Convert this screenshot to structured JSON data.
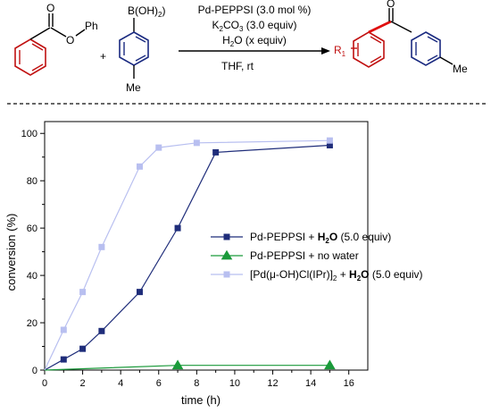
{
  "colors": {
    "red": "#c01010",
    "blue": "#1a2a80",
    "series_navy": "#1f2d7a",
    "series_green": "#1a9a3a",
    "series_light": "#b8bff0",
    "divider": "#333333"
  },
  "scheme": {
    "reactant1": {
      "carbonyl_o": "O",
      "ester_o": "O",
      "ph": "Ph"
    },
    "plus": "+",
    "reactant2": {
      "boronic": "B(OH)",
      "boronic_sub": "2",
      "methyl": "Me"
    },
    "conditions": {
      "line1": "Pd-PEPPSI (3.0 mol %)",
      "line2_pre": "K",
      "line2_sub1": "2",
      "line2_mid": "CO",
      "line2_sub2": "3",
      "line2_post": " (3.0 equiv)",
      "line3_pre": "H",
      "line3_sub": "2",
      "line3_post": "O (x equiv)",
      "line4": "THF, rt"
    },
    "product": {
      "carbonyl_o": "O",
      "r1": "R",
      "r1_sub": "1",
      "methyl": "Me"
    }
  },
  "chart_data": {
    "type": "line",
    "xlabel": "time (h)",
    "ylabel": "conversion (%)",
    "xlim": [
      0,
      17
    ],
    "ylim": [
      0,
      105
    ],
    "xticks": [
      0,
      2,
      4,
      6,
      8,
      10,
      12,
      14,
      16
    ],
    "yticks": [
      0,
      20,
      40,
      60,
      80,
      100
    ],
    "legend_placement": "center-right",
    "series": [
      {
        "id": "s1",
        "color": "#1f2d7a",
        "marker": "square",
        "legend": {
          "pre": "Pd-PEPPSI + ",
          "bold": "H",
          "bold_sub": "2",
          "bold2": "O",
          "post": " (5.0 equiv)"
        },
        "x": [
          0,
          1,
          2,
          3,
          5,
          7,
          9,
          15
        ],
        "y": [
          0,
          4.5,
          9,
          16.5,
          33,
          60,
          92,
          95
        ]
      },
      {
        "id": "s2",
        "color": "#1a9a3a",
        "marker": "triangle",
        "legend": {
          "text": "Pd-PEPPSI + no water"
        },
        "x": [
          0,
          7,
          15
        ],
        "y": [
          0,
          2,
          2
        ]
      },
      {
        "id": "s3",
        "color": "#b8bff0",
        "marker": "square",
        "legend": {
          "pre": "[Pd(μ-OH)Cl(IPr)]",
          "pre_sub": "2",
          "mid": " + ",
          "bold": "H",
          "bold_sub": "2",
          "bold2": "O",
          "post": " (5.0 equiv)"
        },
        "x": [
          0,
          1,
          2,
          3,
          5,
          6,
          8,
          15
        ],
        "y": [
          0,
          17,
          33,
          52,
          86,
          94,
          96,
          97
        ]
      }
    ]
  }
}
